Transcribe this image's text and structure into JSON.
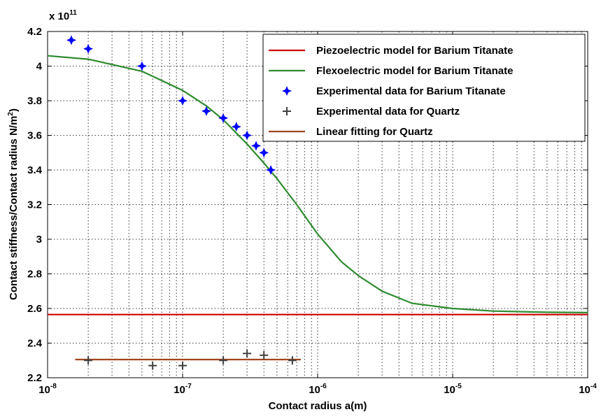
{
  "chart_data": {
    "type": "line",
    "xlabel": "Contact radius a(m)",
    "ylabel": "Contact stiffness/Contact radius N/m",
    "ylabel_superscript": "2",
    "ylabel_suffix": ")",
    "y_multiplier": "x 10",
    "y_multiplier_exp": "11",
    "x_scale": "log",
    "xlim": [
      1e-08,
      0.0001
    ],
    "ylim": [
      2.2,
      4.2
    ],
    "grid": true,
    "legend_position": "top-right",
    "x_ticks": [
      {
        "base": "10",
        "exp": "-8",
        "value": 1e-08
      },
      {
        "base": "10",
        "exp": "-7",
        "value": 1e-07
      },
      {
        "base": "10",
        "exp": "-6",
        "value": 1e-06
      },
      {
        "base": "10",
        "exp": "-5",
        "value": 1e-05
      },
      {
        "base": "10",
        "exp": "-4",
        "value": 0.0001
      }
    ],
    "y_ticks": [
      "2.2",
      "2.4",
      "2.6",
      "2.8",
      "3",
      "3.2",
      "3.4",
      "3.6",
      "3.8",
      "4",
      "4.2"
    ],
    "series": [
      {
        "name": "Piezoelectric model for Barium Titanate",
        "kind": "line",
        "color": "#d00000",
        "x": [
          1e-08,
          0.0001
        ],
        "y": [
          2.565,
          2.565
        ]
      },
      {
        "name": "Flexoelectric model for Barium Titanate",
        "kind": "line",
        "color": "#2e8b2e",
        "x": [
          1e-08,
          2e-08,
          5e-08,
          1e-07,
          1.5e-07,
          2e-07,
          3e-07,
          4e-07,
          5e-07,
          7e-07,
          1e-06,
          1.5e-06,
          2e-06,
          3e-06,
          5e-06,
          1e-05,
          2e-05,
          5e-05,
          0.0001
        ],
        "y": [
          4.06,
          4.04,
          3.97,
          3.86,
          3.77,
          3.69,
          3.55,
          3.44,
          3.35,
          3.2,
          3.03,
          2.87,
          2.79,
          2.7,
          2.63,
          2.6,
          2.585,
          2.578,
          2.576
        ]
      },
      {
        "name": "Experimental data for Barium Titanate",
        "kind": "star",
        "color": "#0000ff",
        "x": [
          1.5e-08,
          2e-08,
          5e-08,
          1e-07,
          1.5e-07,
          2e-07,
          2.5e-07,
          3e-07,
          3.5e-07,
          4e-07,
          4.5e-07
        ],
        "y": [
          4.15,
          4.1,
          4.0,
          3.8,
          3.74,
          3.7,
          3.65,
          3.6,
          3.54,
          3.5,
          3.4
        ]
      },
      {
        "name": "Experimental data for Quartz",
        "kind": "plus",
        "color": "#404040",
        "x": [
          2e-08,
          6e-08,
          1e-07,
          2e-07,
          3e-07,
          4e-07,
          6.5e-07
        ],
        "y": [
          2.3,
          2.27,
          2.27,
          2.3,
          2.34,
          2.33,
          2.3
        ]
      },
      {
        "name": "Linear fitting for Quartz",
        "kind": "line",
        "color": "#a0461e",
        "x": [
          1.6e-08,
          7.5e-07
        ],
        "y": [
          2.305,
          2.305
        ]
      }
    ]
  }
}
